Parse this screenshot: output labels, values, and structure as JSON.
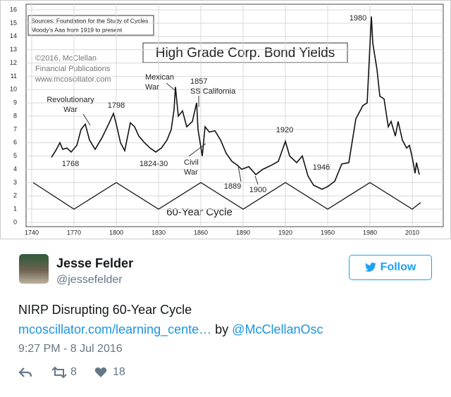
{
  "chart_data": {
    "type": "line",
    "title": "High Grade Corp. Bond Yields",
    "sources": [
      "Sources: Foundation for the Study of Cycles",
      "Moody's Aaa from 1919 to present"
    ],
    "credit": [
      "©2016, McClellan",
      "Financial Publications",
      "www.mcoscillator.com"
    ],
    "cycle_label": "60-Year Cycle",
    "annotations": [
      [
        "Revolutionary",
        "War"
      ],
      [
        "1798"
      ],
      [
        "Mexican",
        "War"
      ],
      [
        "1857",
        "SS California"
      ],
      [
        "1768"
      ],
      [
        "1824-30"
      ],
      [
        "Civil",
        "War"
      ],
      [
        "1889"
      ],
      [
        "1900"
      ],
      [
        "1920"
      ],
      [
        "1946"
      ],
      [
        "1980"
      ]
    ],
    "series": [
      {
        "color": "#111111",
        "x": [
          1754,
          1757,
          1760,
          1762,
          1765,
          1768,
          1772,
          1775,
          1778,
          1781,
          1785,
          1790,
          1795,
          1798,
          1800,
          1803,
          1806,
          1810,
          1813,
          1816,
          1820,
          1824,
          1828,
          1832,
          1836,
          1839,
          1841,
          1842,
          1844,
          1847,
          1850,
          1854,
          1857,
          1858,
          1861,
          1863,
          1866,
          1870,
          1874,
          1878,
          1882,
          1886,
          1889,
          1894,
          1899,
          1904,
          1910,
          1915,
          1920,
          1923,
          1928,
          1932,
          1936,
          1940,
          1946,
          1950,
          1955,
          1960,
          1965,
          1970,
          1975,
          1978,
          1981,
          1982,
          1985,
          1987,
          1990,
          1993,
          1995,
          1998,
          2000,
          2003,
          2006,
          2008,
          2010,
          2012,
          2013,
          2015
        ],
        "values": [
          4.9,
          5.4,
          6.0,
          5.5,
          5.6,
          5.3,
          5.8,
          7.0,
          7.4,
          6.2,
          5.5,
          6.4,
          7.5,
          8.2,
          7.4,
          6.0,
          5.4,
          7.5,
          7.2,
          6.5,
          6.0,
          5.6,
          5.3,
          5.6,
          6.2,
          7.0,
          8.5,
          10.2,
          8.0,
          8.4,
          7.2,
          7.6,
          9.0,
          7.0,
          5.0,
          7.2,
          6.8,
          6.9,
          6.2,
          5.2,
          4.6,
          4.3,
          4.0,
          4.2,
          3.6,
          4.0,
          4.3,
          4.6,
          6.1,
          5.0,
          4.5,
          5.0,
          3.5,
          2.8,
          2.5,
          2.7,
          3.1,
          4.4,
          4.5,
          7.8,
          8.8,
          9.0,
          15.5,
          13.5,
          11.5,
          9.5,
          9.3,
          7.2,
          7.6,
          6.5,
          7.6,
          6.2,
          5.6,
          5.8,
          4.9,
          3.7,
          4.5,
          3.6
        ]
      },
      {
        "color": "#111111",
        "x": [
          1741,
          1770,
          1800,
          1830,
          1860,
          1890,
          1920,
          1950,
          1980,
          2010,
          2016
        ],
        "values": [
          3,
          1,
          3,
          1,
          3,
          1,
          3,
          1,
          3,
          1,
          1.5
        ]
      }
    ],
    "xlim": [
      1736,
      2031
    ],
    "ylim": [
      0,
      16
    ],
    "xticks": [
      1740,
      1770,
      1800,
      1830,
      1860,
      1890,
      1920,
      1950,
      1980,
      2010
    ],
    "yticks": [
      0,
      1,
      2,
      3,
      4,
      5,
      6,
      7,
      8,
      9,
      10,
      11,
      12,
      13,
      14,
      15,
      16
    ],
    "grid": true
  },
  "tweet": {
    "name": "Jesse Felder",
    "handle": "@jessefelder",
    "follow": "Follow",
    "text": "NIRP Disrupting 60-Year Cycle",
    "link": "mcoscillator.com/learning_cente…",
    "by": "by",
    "by_handle": "@McClellanOsc",
    "time": "9:27 PM - 8 Jul 2016",
    "retweets": 8,
    "likes": 18
  }
}
